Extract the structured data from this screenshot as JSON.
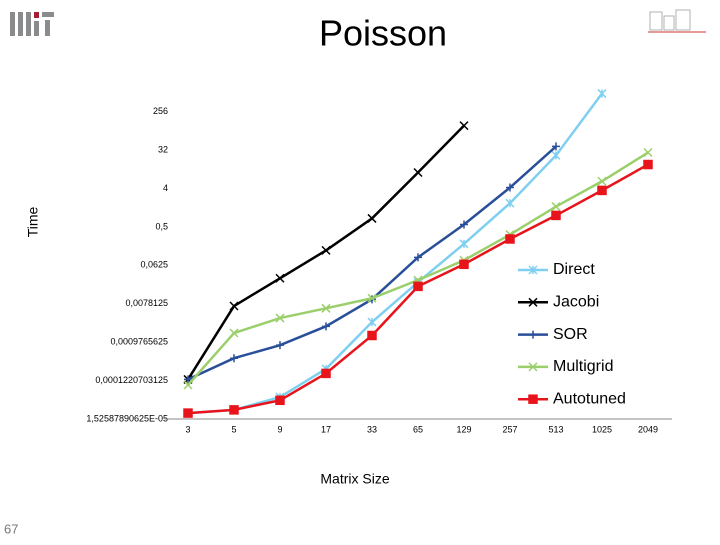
{
  "chart_data": {
    "type": "line",
    "title": "Poisson",
    "y_label": "Time",
    "x_label": "Matrix Size",
    "categories": [
      "3",
      "5",
      "9",
      "17",
      "33",
      "65",
      "129",
      "257",
      "513",
      "1025",
      "2049"
    ],
    "log_scale": true,
    "legend": "right",
    "ylim": [
      1.52587890625e-05,
      1024
    ],
    "yticks": [
      {
        "value": 1.52587890625e-05,
        "label": "1,52587890625E-05"
      },
      {
        "value": 0.0001220703125,
        "label": "0,0001220703125"
      },
      {
        "value": 0.0009765625,
        "label": "0,0009765625"
      },
      {
        "value": 0.0078125,
        "label": "0,0078125"
      },
      {
        "value": 0.0625,
        "label": "0,0625"
      },
      {
        "value": 0.5,
        "label": "0,5"
      },
      4,
      32,
      256
    ],
    "series": [
      {
        "name": "Direct",
        "color": "#7fcff0",
        "marker": "star",
        "values": [
          2.1e-05,
          2.5e-05,
          5e-05,
          0.00023,
          0.0029,
          0.025,
          0.2,
          1.8,
          24,
          680,
          null
        ]
      },
      {
        "name": "Jacobi",
        "color": "#000000",
        "marker": "x",
        "values": [
          0.00013,
          0.0069,
          0.031,
          0.14,
          0.79,
          9.5,
          120,
          null,
          null,
          null,
          null
        ]
      },
      {
        "name": "SOR",
        "color": "#2a4f9a",
        "marker": "plus",
        "values": [
          0.00013,
          0.00041,
          0.00083,
          0.0023,
          0.0099,
          0.096,
          0.57,
          4.2,
          39,
          null,
          null
        ]
      },
      {
        "name": "Multigrid",
        "color": "#9bcf6b",
        "marker": "x",
        "values": [
          9.6e-05,
          0.0016,
          0.0036,
          0.0061,
          0.0105,
          0.028,
          0.082,
          0.33,
          1.5,
          5.9,
          28
        ]
      },
      {
        "name": "Autotuned",
        "color": "#e8141c",
        "marker": "square",
        "values": [
          2.1e-05,
          2.5e-05,
          4.2e-05,
          0.00018,
          0.0014,
          0.02,
          0.066,
          0.26,
          0.93,
          3.6,
          14.6
        ]
      }
    ]
  },
  "slide_number": "67"
}
